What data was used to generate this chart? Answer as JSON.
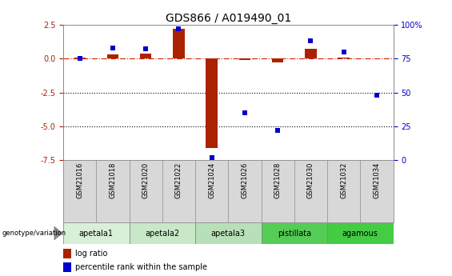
{
  "title": "GDS866 / A019490_01",
  "samples": [
    "GSM21016",
    "GSM21018",
    "GSM21020",
    "GSM21022",
    "GSM21024",
    "GSM21026",
    "GSM21028",
    "GSM21030",
    "GSM21032",
    "GSM21034"
  ],
  "log_ratio": [
    0.05,
    0.3,
    0.35,
    2.2,
    -6.6,
    -0.1,
    -0.25,
    0.75,
    0.05,
    0.02
  ],
  "percentile_rank": [
    75,
    83,
    82,
    97,
    2,
    35,
    22,
    88,
    80,
    48
  ],
  "ylim_left": [
    -7.5,
    2.5
  ],
  "ylim_right": [
    0,
    100
  ],
  "groups": [
    {
      "label": "apetala1",
      "start": 0,
      "end": 1,
      "color": "#d8efd8"
    },
    {
      "label": "apetala2",
      "start": 2,
      "end": 3,
      "color": "#c8e8c8"
    },
    {
      "label": "apetala3",
      "start": 4,
      "end": 5,
      "color": "#b8e0b8"
    },
    {
      "label": "pistillata",
      "start": 6,
      "end": 7,
      "color": "#55cc55"
    },
    {
      "label": "agamous",
      "start": 8,
      "end": 9,
      "color": "#44cc44"
    }
  ],
  "bar_color_red": "#aa2200",
  "bar_color_blue": "#0000cc",
  "dotted_line_color": "#000000",
  "dash_line_color": "#cc2200",
  "bg_color": "#ffffff",
  "left_yticks": [
    2.5,
    0.0,
    -2.5,
    -5.0,
    -7.5
  ],
  "right_yticks": [
    100,
    75,
    50,
    25,
    0
  ],
  "title_fontsize": 10,
  "tick_fontsize": 7,
  "sample_fontsize": 6,
  "group_fontsize": 7,
  "legend_fontsize": 7
}
